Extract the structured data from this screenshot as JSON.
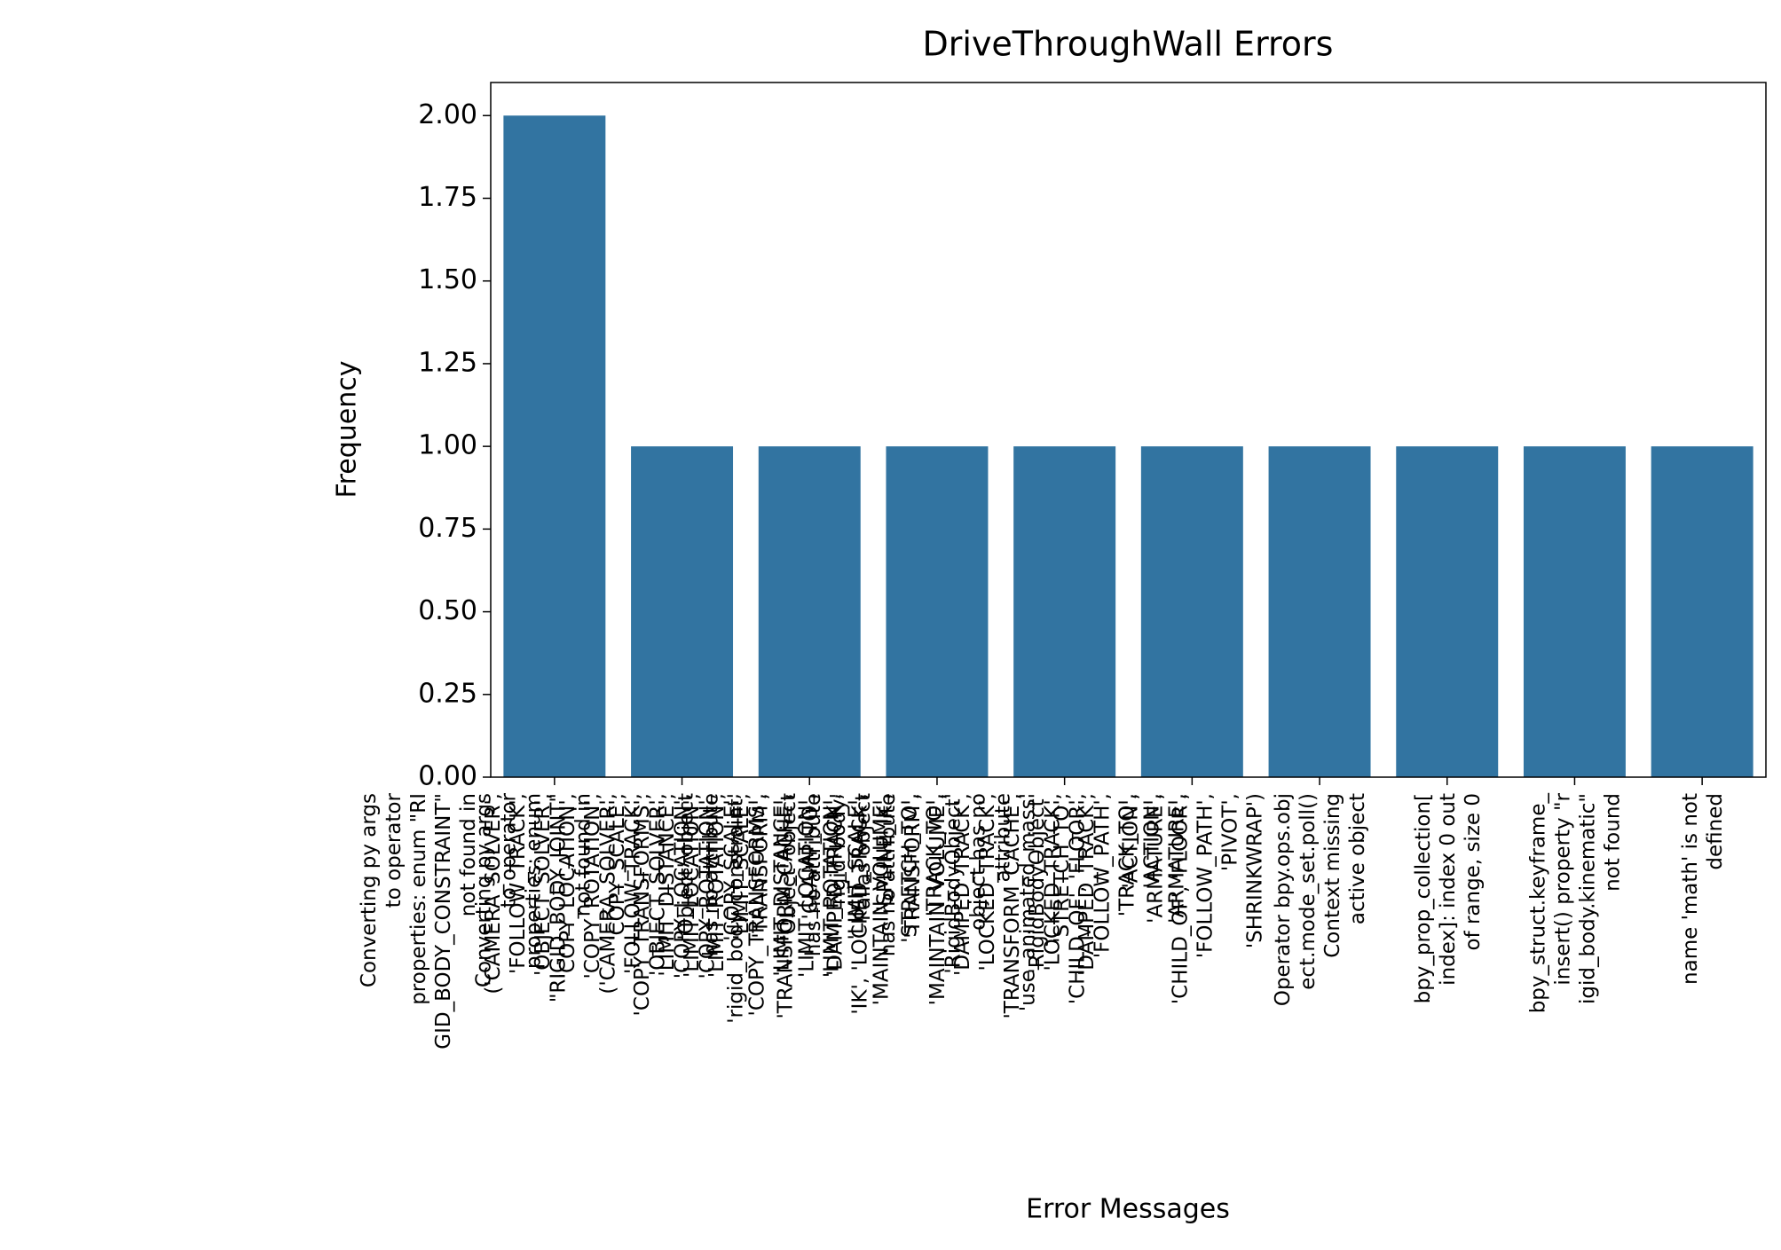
{
  "chart_data": {
    "type": "bar",
    "title": "DriveThroughWall Errors",
    "x_label": "Error Messages",
    "y_label": "Frequency",
    "color": "#3274a1",
    "categories": [
      "Converting py args\nto operator\nproperties: enum \"RI\nGID_BODY_CONSTRAINT\"\nnot found in\n('CAMERA_SOLVER',\n'FOLLOW_TRACK',\n'OBJECT_SOLVER',\n'COPY_LOCATION',\n'COPY_ROTATION',\n'COPY_SCALE',\n'COPY_TRANSFORMS',\n'LIMIT_DISTANCE',\n'LIMIT_LOCATION',\n'LIMIT_ROTATION',\n'LIMIT_SCALE',",
      "Converting py args\nto operator\nproperties: enum\n\"RIGID_BODY_JOINT\"\nnot found in\n('CAMERA_SOLVER',\n'FOLLOW_TRACK',\n'OBJECT_SOLVER',\n'COPY_LOCATION',\n'COPY_ROTATION',\n'COPY_SCALE',\n'COPY_TRANSFORMS',\n'LIMIT_DISTANCE',\n'LIMIT_LOCATION',\n'LIMIT_ROTATION',\n'LIMIT_SCALE',\n'MAINTAIN_VOLUME',",
      "'Object' object\nhas no attribute\n'rigid_body_constraint'\n'TRANSFORM',\n'TRANSFORM_CACHE',\n'CLAMP_TO',\n'DAMPED_TRACK',\n'IK', 'LOCKED_TRACK',\n'SPLINE_IK',\n'STRETCH_TO',\n'TRACK_TO',",
      "'Object' object\nhas no attribute\n'rigid_body'\nPallas object\nhas no attribute\n'TRANSFORM',\n'MAINTAIN_VOLUME',\n'DAMPED_TRACK',\n'LOCKED_TRACK',\n'TRANSFORM_CACHE',\n'RigidBodyObject'\n'STRETCH_TO',\n'DAMPED_TRACK',",
      "'RigidBodyObject'\nobject has no\nattribute\n'use_animated_mass'\n'LOCKED_TRACK',\n'CHILD_OF', 'FLOOR',\n'FOLLOW_PATH',\n'TRACK_TO',\n'ACTION',\n'ARMATURE',",
      "'ACTION',\n'ARMATURE',\n'CHILD_OF', 'FLOOR',\n'FOLLOW_PATH',\n'PIVOT',\n'SHRINKWRAP')",
      "Operator bpy.ops.obj\nect.mode_set.poll()\nContext missing\nactive object",
      "bpy_prop_collection[\nindex]: index 0 out\nof range, size 0",
      "bpy_struct.keyframe_\ninsert() property \"r\nigid_body.kinematic\"\nnot found",
      "name 'math' is not\ndefined"
    ],
    "values": [
      2,
      1,
      1,
      1,
      1,
      1,
      1,
      1,
      1,
      1
    ],
    "ylim": [
      0,
      2.1
    ],
    "yticks": [
      {
        "value": 0,
        "label": "0.00"
      },
      {
        "value": 0.25,
        "label": "0.25"
      },
      {
        "value": 0.5,
        "label": "0.50"
      },
      {
        "value": 0.75,
        "label": "0.75"
      },
      {
        "value": 1,
        "label": "1.00"
      },
      {
        "value": 1.25,
        "label": "1.25"
      },
      {
        "value": 1.5,
        "label": "1.50"
      },
      {
        "value": 1.75,
        "label": "1.75"
      },
      {
        "value": 2,
        "label": "2.00"
      }
    ]
  }
}
